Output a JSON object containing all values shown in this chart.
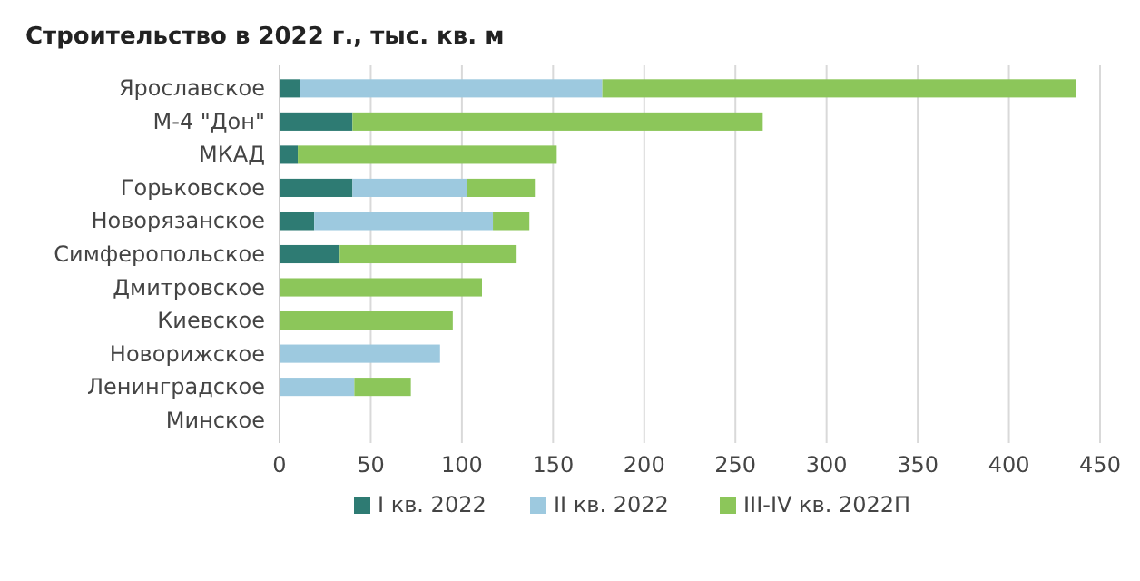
{
  "chart_data": {
    "type": "bar",
    "orientation": "horizontal",
    "stacked": true,
    "title": "Строительство в 2022 г., тыс. кв. м",
    "categories": [
      "Ярославское",
      "М-4 \"Дон\"",
      "МКАД",
      "Горьковское",
      "Новорязанское",
      "Симферопольское",
      "Дмитровское",
      "Киевское",
      "Новорижское",
      "Ленинградское",
      "Минское"
    ],
    "series": [
      {
        "name": "I кв. 2022",
        "color": "#2e7b73",
        "values": [
          11,
          40,
          10,
          40,
          19,
          33,
          null,
          null,
          null,
          null,
          null
        ]
      },
      {
        "name": "II кв. 2022",
        "color": "#9dc9df",
        "values": [
          166,
          null,
          null,
          63,
          98,
          null,
          null,
          null,
          88,
          41,
          null
        ]
      },
      {
        "name": "III-IV кв. 2022П",
        "color": "#8cc65a",
        "values": [
          260,
          225,
          142,
          37,
          20,
          97,
          111,
          95,
          null,
          31,
          null
        ]
      }
    ],
    "xlim": [
      0,
      450
    ],
    "xticks": [
      0,
      50,
      100,
      150,
      200,
      250,
      300,
      350,
      400,
      450
    ],
    "grid": "x",
    "legend": "bottom"
  }
}
